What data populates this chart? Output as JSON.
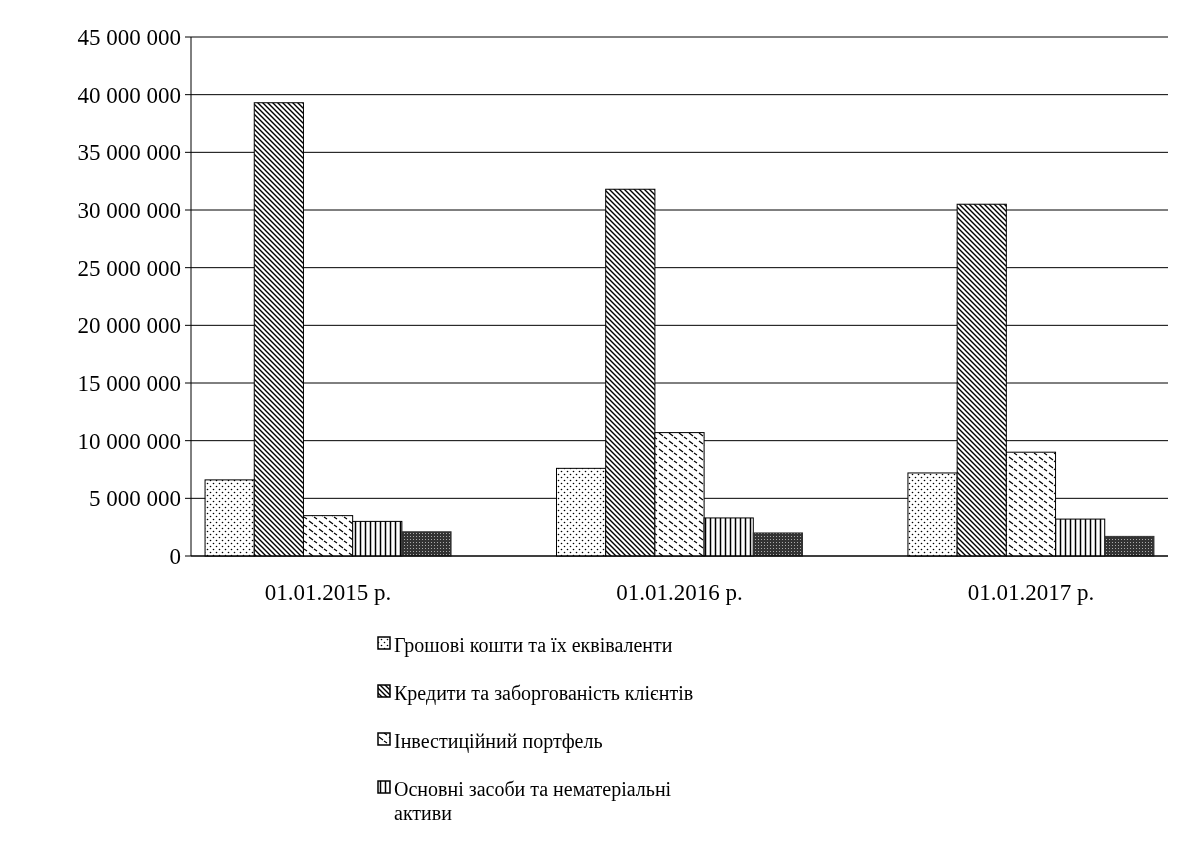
{
  "chart_data": {
    "type": "bar",
    "categories": [
      "01.01.2015 р.",
      "01.01.2016 р.",
      "01.01.2017 р."
    ],
    "series": [
      {
        "name": "Грошові кошти та їх еквіваленти",
        "color": "#000000",
        "values": [
          6600000,
          7600000,
          7200000
        ]
      },
      {
        "name": "Кредити та заборгованість клієнтів",
        "color": "#000000",
        "values": [
          39300000,
          31800000,
          30500000
        ]
      },
      {
        "name": "Інвестиційний портфель",
        "color": "#000000",
        "values": [
          3500000,
          10700000,
          9000000
        ]
      },
      {
        "name": "Основні засоби та нематеріальні активи",
        "color": "#000000",
        "values": [
          3000000,
          3300000,
          3200000
        ]
      },
      {
        "color": "#333333",
        "values": [
          2100000,
          2000000,
          1700000
        ]
      }
    ],
    "ylim": [
      0,
      45000000
    ],
    "yticks": [
      {
        "value": 0,
        "label": "0"
      },
      {
        "value": 5000000,
        "label": "5 000 000"
      },
      {
        "value": 10000000,
        "label": "10 000 000"
      },
      {
        "value": 15000000,
        "label": "15 000 000"
      },
      {
        "value": 20000000,
        "label": "20 000 000"
      },
      {
        "value": 25000000,
        "label": "25 000 000"
      },
      {
        "value": 30000000,
        "label": "30 000 000"
      },
      {
        "value": 35000000,
        "label": "35 000 000"
      },
      {
        "value": 40000000,
        "label": "40 000 000"
      },
      {
        "value": 45000000,
        "label": "45 000 000"
      }
    ],
    "grid": "y",
    "legend": "bottom"
  }
}
